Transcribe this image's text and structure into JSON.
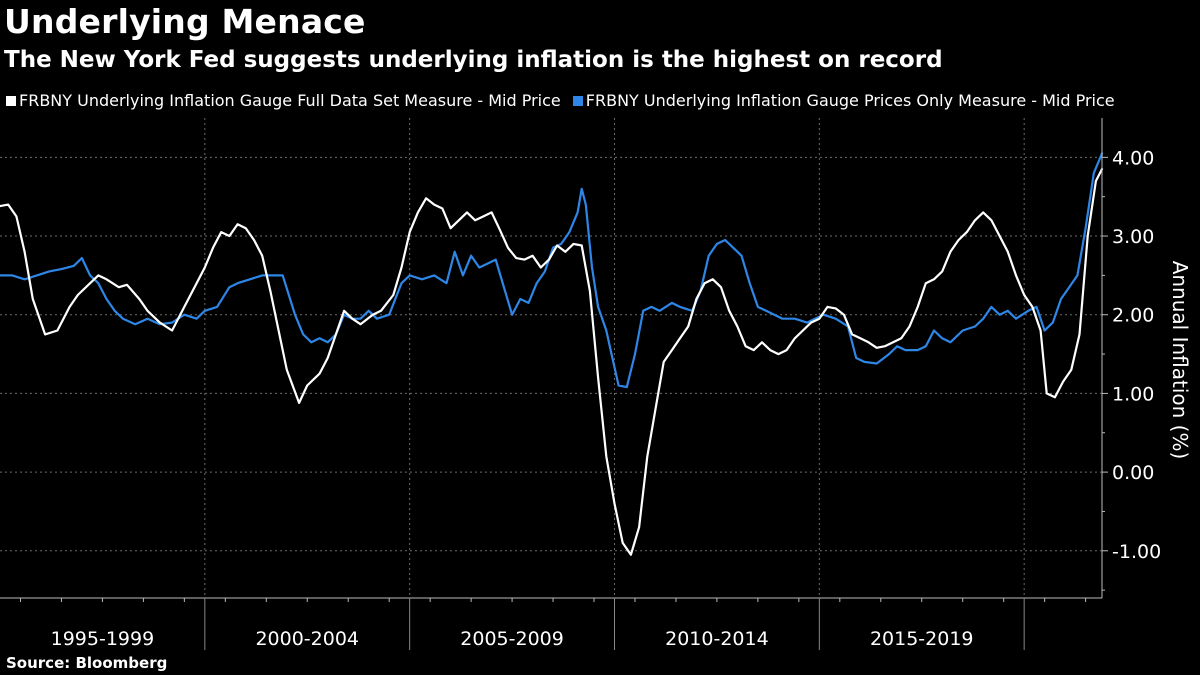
{
  "title": "Underlying Menace",
  "subtitle": "The New York Fed suggests underlying inflation is the highest on record",
  "source": "Source: Bloomberg",
  "colors": {
    "background": "#000000",
    "series_full": "#ffffff",
    "series_prices": "#2e86e6",
    "grid": "#6b6b6b"
  },
  "chart_data": {
    "type": "line",
    "title": "Underlying Menace",
    "subtitle": "The New York Fed suggests underlying inflation is the highest on record",
    "xlabel": "",
    "ylabel": "Annual Inflation (%)",
    "ylim": [
      -1.6,
      4.5
    ],
    "xlim": [
      1995.0,
      2021.9
    ],
    "y_ticks": [
      4.0,
      3.0,
      2.0,
      1.0,
      0.0,
      -1.0
    ],
    "y_tick_labels": [
      "4.00",
      "3.00",
      "2.00",
      "1.00",
      "0.00",
      "-1.00"
    ],
    "x_period_labels": [
      "1995-1999",
      "2000-2004",
      "2005-2009",
      "2010-2014",
      "2015-2019"
    ],
    "grid": true,
    "legend_position": "top",
    "series": [
      {
        "name": "FRBNY Underlying Inflation Gauge Full Data Set Measure - Mid Price",
        "color": "#ffffff",
        "points": [
          [
            1995.0,
            3.38
          ],
          [
            1995.2,
            3.4
          ],
          [
            1995.4,
            3.25
          ],
          [
            1995.6,
            2.8
          ],
          [
            1995.8,
            2.2
          ],
          [
            1996.1,
            1.75
          ],
          [
            1996.4,
            1.8
          ],
          [
            1996.7,
            2.1
          ],
          [
            1996.9,
            2.25
          ],
          [
            1997.2,
            2.4
          ],
          [
            1997.4,
            2.5
          ],
          [
            1997.6,
            2.45
          ],
          [
            1997.9,
            2.35
          ],
          [
            1998.1,
            2.38
          ],
          [
            1998.4,
            2.2
          ],
          [
            1998.6,
            2.05
          ],
          [
            1998.9,
            1.9
          ],
          [
            1999.2,
            1.8
          ],
          [
            1999.5,
            2.1
          ],
          [
            1999.8,
            2.4
          ],
          [
            2000.0,
            2.6
          ],
          [
            2000.2,
            2.85
          ],
          [
            2000.4,
            3.05
          ],
          [
            2000.6,
            3.0
          ],
          [
            2000.8,
            3.15
          ],
          [
            2001.0,
            3.1
          ],
          [
            2001.2,
            2.95
          ],
          [
            2001.4,
            2.75
          ],
          [
            2001.6,
            2.3
          ],
          [
            2001.8,
            1.8
          ],
          [
            2002.0,
            1.3
          ],
          [
            2002.3,
            0.88
          ],
          [
            2002.5,
            1.1
          ],
          [
            2002.8,
            1.25
          ],
          [
            2003.0,
            1.45
          ],
          [
            2003.2,
            1.75
          ],
          [
            2003.4,
            2.05
          ],
          [
            2003.6,
            1.95
          ],
          [
            2003.8,
            1.88
          ],
          [
            2004.1,
            2.0
          ],
          [
            2004.3,
            2.05
          ],
          [
            2004.6,
            2.25
          ],
          [
            2004.8,
            2.6
          ],
          [
            2005.0,
            3.05
          ],
          [
            2005.2,
            3.3
          ],
          [
            2005.4,
            3.48
          ],
          [
            2005.6,
            3.4
          ],
          [
            2005.8,
            3.35
          ],
          [
            2006.0,
            3.1
          ],
          [
            2006.2,
            3.2
          ],
          [
            2006.4,
            3.3
          ],
          [
            2006.6,
            3.2
          ],
          [
            2006.8,
            3.25
          ],
          [
            2007.0,
            3.3
          ],
          [
            2007.2,
            3.08
          ],
          [
            2007.4,
            2.85
          ],
          [
            2007.6,
            2.72
          ],
          [
            2007.8,
            2.7
          ],
          [
            2008.0,
            2.75
          ],
          [
            2008.2,
            2.6
          ],
          [
            2008.4,
            2.7
          ],
          [
            2008.6,
            2.88
          ],
          [
            2008.8,
            2.8
          ],
          [
            2009.0,
            2.9
          ],
          [
            2009.2,
            2.88
          ],
          [
            2009.4,
            2.3
          ],
          [
            2009.6,
            1.2
          ],
          [
            2009.8,
            0.2
          ],
          [
            2010.0,
            -0.4
          ],
          [
            2010.2,
            -0.9
          ],
          [
            2010.4,
            -1.05
          ],
          [
            2010.6,
            -0.7
          ],
          [
            2010.8,
            0.2
          ],
          [
            2011.0,
            0.8
          ],
          [
            2011.2,
            1.4
          ],
          [
            2011.4,
            1.55
          ],
          [
            2011.6,
            1.7
          ],
          [
            2011.8,
            1.85
          ],
          [
            2012.0,
            2.2
          ],
          [
            2012.2,
            2.4
          ],
          [
            2012.4,
            2.45
          ],
          [
            2012.6,
            2.35
          ],
          [
            2012.8,
            2.05
          ],
          [
            2013.0,
            1.85
          ],
          [
            2013.2,
            1.6
          ],
          [
            2013.4,
            1.55
          ],
          [
            2013.6,
            1.65
          ],
          [
            2013.8,
            1.55
          ],
          [
            2014.0,
            1.5
          ],
          [
            2014.2,
            1.55
          ],
          [
            2014.4,
            1.7
          ],
          [
            2014.6,
            1.8
          ],
          [
            2014.8,
            1.9
          ],
          [
            2015.0,
            1.95
          ],
          [
            2015.2,
            2.1
          ],
          [
            2015.4,
            2.08
          ],
          [
            2015.6,
            2.0
          ],
          [
            2015.8,
            1.75
          ],
          [
            2016.0,
            1.7
          ],
          [
            2016.2,
            1.65
          ],
          [
            2016.4,
            1.58
          ],
          [
            2016.6,
            1.6
          ],
          [
            2016.8,
            1.65
          ],
          [
            2017.0,
            1.7
          ],
          [
            2017.2,
            1.85
          ],
          [
            2017.4,
            2.1
          ],
          [
            2017.6,
            2.4
          ],
          [
            2017.8,
            2.45
          ],
          [
            2018.0,
            2.55
          ],
          [
            2018.2,
            2.8
          ],
          [
            2018.4,
            2.95
          ],
          [
            2018.6,
            3.05
          ],
          [
            2018.8,
            3.2
          ],
          [
            2019.0,
            3.3
          ],
          [
            2019.2,
            3.2
          ],
          [
            2019.4,
            3.0
          ],
          [
            2019.6,
            2.8
          ],
          [
            2019.8,
            2.5
          ],
          [
            2020.0,
            2.25
          ],
          [
            2020.2,
            2.1
          ],
          [
            2020.4,
            1.8
          ],
          [
            2020.55,
            1.0
          ],
          [
            2020.75,
            0.95
          ],
          [
            2020.95,
            1.15
          ],
          [
            2021.15,
            1.3
          ],
          [
            2021.35,
            1.75
          ],
          [
            2021.55,
            3.0
          ],
          [
            2021.75,
            3.7
          ],
          [
            2021.9,
            3.85
          ]
        ]
      },
      {
        "name": "FRBNY Underlying Inflation Gauge Prices Only Measure - Mid Price",
        "color": "#2e86e6",
        "points": [
          [
            1995.0,
            2.5
          ],
          [
            1995.3,
            2.5
          ],
          [
            1995.6,
            2.45
          ],
          [
            1995.9,
            2.5
          ],
          [
            1996.2,
            2.55
          ],
          [
            1996.5,
            2.58
          ],
          [
            1996.8,
            2.62
          ],
          [
            1997.0,
            2.72
          ],
          [
            1997.2,
            2.5
          ],
          [
            1997.4,
            2.4
          ],
          [
            1997.6,
            2.2
          ],
          [
            1997.8,
            2.05
          ],
          [
            1998.0,
            1.95
          ],
          [
            1998.3,
            1.88
          ],
          [
            1998.6,
            1.95
          ],
          [
            1998.9,
            1.88
          ],
          [
            1999.2,
            1.9
          ],
          [
            1999.5,
            2.0
          ],
          [
            1999.8,
            1.95
          ],
          [
            2000.0,
            2.05
          ],
          [
            2000.3,
            2.1
          ],
          [
            2000.6,
            2.35
          ],
          [
            2000.8,
            2.4
          ],
          [
            2001.1,
            2.45
          ],
          [
            2001.4,
            2.5
          ],
          [
            2001.6,
            2.5
          ],
          [
            2001.9,
            2.5
          ],
          [
            2002.2,
            2.0
          ],
          [
            2002.4,
            1.75
          ],
          [
            2002.6,
            1.65
          ],
          [
            2002.8,
            1.7
          ],
          [
            2003.0,
            1.65
          ],
          [
            2003.2,
            1.75
          ],
          [
            2003.4,
            2.0
          ],
          [
            2003.6,
            1.95
          ],
          [
            2003.8,
            1.95
          ],
          [
            2004.0,
            2.05
          ],
          [
            2004.2,
            1.95
          ],
          [
            2004.5,
            2.0
          ],
          [
            2004.8,
            2.4
          ],
          [
            2005.0,
            2.5
          ],
          [
            2005.3,
            2.45
          ],
          [
            2005.6,
            2.5
          ],
          [
            2005.9,
            2.4
          ],
          [
            2006.1,
            2.8
          ],
          [
            2006.3,
            2.5
          ],
          [
            2006.5,
            2.75
          ],
          [
            2006.7,
            2.6
          ],
          [
            2006.9,
            2.65
          ],
          [
            2007.1,
            2.7
          ],
          [
            2007.3,
            2.35
          ],
          [
            2007.5,
            2.0
          ],
          [
            2007.7,
            2.2
          ],
          [
            2007.9,
            2.15
          ],
          [
            2008.1,
            2.4
          ],
          [
            2008.3,
            2.55
          ],
          [
            2008.5,
            2.85
          ],
          [
            2008.7,
            2.9
          ],
          [
            2008.9,
            3.05
          ],
          [
            2009.1,
            3.3
          ],
          [
            2009.2,
            3.6
          ],
          [
            2009.3,
            3.4
          ],
          [
            2009.45,
            2.6
          ],
          [
            2009.6,
            2.1
          ],
          [
            2009.8,
            1.8
          ],
          [
            2009.95,
            1.45
          ],
          [
            2010.1,
            1.1
          ],
          [
            2010.3,
            1.08
          ],
          [
            2010.5,
            1.5
          ],
          [
            2010.7,
            2.05
          ],
          [
            2010.9,
            2.1
          ],
          [
            2011.1,
            2.05
          ],
          [
            2011.4,
            2.15
          ],
          [
            2011.6,
            2.1
          ],
          [
            2011.9,
            2.05
          ],
          [
            2012.1,
            2.3
          ],
          [
            2012.3,
            2.75
          ],
          [
            2012.5,
            2.9
          ],
          [
            2012.7,
            2.95
          ],
          [
            2012.9,
            2.85
          ],
          [
            2013.1,
            2.75
          ],
          [
            2013.3,
            2.4
          ],
          [
            2013.5,
            2.1
          ],
          [
            2013.7,
            2.05
          ],
          [
            2013.9,
            2.0
          ],
          [
            2014.1,
            1.95
          ],
          [
            2014.4,
            1.95
          ],
          [
            2014.7,
            1.9
          ],
          [
            2014.9,
            1.95
          ],
          [
            2015.1,
            2.0
          ],
          [
            2015.4,
            1.95
          ],
          [
            2015.7,
            1.85
          ],
          [
            2015.9,
            1.45
          ],
          [
            2016.1,
            1.4
          ],
          [
            2016.4,
            1.38
          ],
          [
            2016.7,
            1.5
          ],
          [
            2016.9,
            1.6
          ],
          [
            2017.1,
            1.55
          ],
          [
            2017.4,
            1.55
          ],
          [
            2017.6,
            1.6
          ],
          [
            2017.8,
            1.8
          ],
          [
            2018.0,
            1.7
          ],
          [
            2018.2,
            1.65
          ],
          [
            2018.5,
            1.8
          ],
          [
            2018.8,
            1.85
          ],
          [
            2019.0,
            1.95
          ],
          [
            2019.2,
            2.1
          ],
          [
            2019.4,
            2.0
          ],
          [
            2019.6,
            2.05
          ],
          [
            2019.8,
            1.95
          ],
          [
            2020.1,
            2.05
          ],
          [
            2020.3,
            2.1
          ],
          [
            2020.5,
            1.8
          ],
          [
            2020.7,
            1.9
          ],
          [
            2020.9,
            2.2
          ],
          [
            2021.1,
            2.35
          ],
          [
            2021.3,
            2.5
          ],
          [
            2021.5,
            3.1
          ],
          [
            2021.7,
            3.8
          ],
          [
            2021.9,
            4.05
          ]
        ]
      }
    ]
  }
}
